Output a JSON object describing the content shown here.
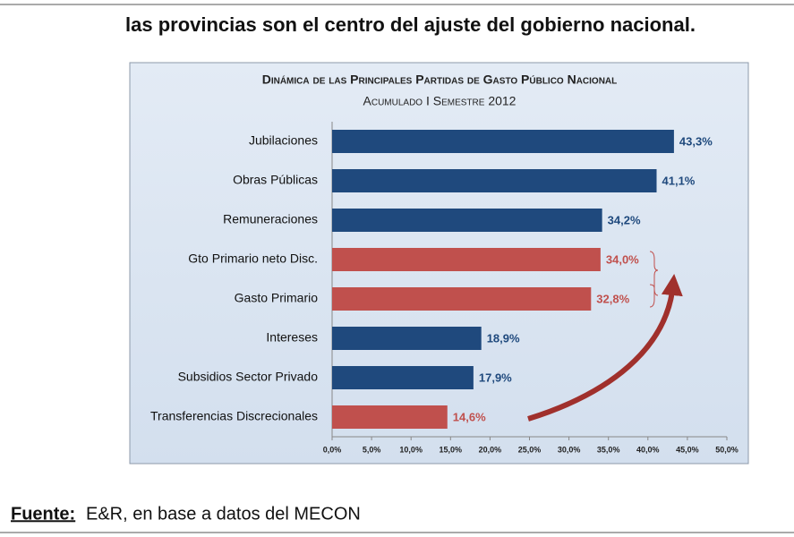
{
  "header": {
    "text": "las provincias son el centro del ajuste del gobierno nacional."
  },
  "chart_data": {
    "type": "hbar",
    "title": "Dinámica de las Principales Partidas de Gasto Público Nacional",
    "subtitle": "Acumulado I Semestre 2012",
    "categories": [
      "Jubilaciones",
      "Obras Públicas",
      "Remuneraciones",
      "Gto Primario neto Disc.",
      "Gasto Primario",
      "Intereses",
      "Subsidios Sector Privado",
      "Transferencias Discrecionales"
    ],
    "values": [
      43.3,
      41.1,
      34.2,
      34.0,
      32.8,
      18.9,
      17.9,
      14.6
    ],
    "value_labels": [
      "43,3%",
      "41,1%",
      "34,2%",
      "34,0%",
      "32,8%",
      "18,9%",
      "17,9%",
      "14,6%"
    ],
    "colors": [
      "#1f497d",
      "#1f497d",
      "#1f497d",
      "#c0504d",
      "#c0504d",
      "#1f497d",
      "#1f497d",
      "#c0504d"
    ],
    "xlim": [
      0,
      50
    ],
    "xticks": [
      {
        "value": 0,
        "label": "0,0%"
      },
      {
        "value": 5,
        "label": "5,0%"
      },
      {
        "value": 10,
        "label": "10,0%"
      },
      {
        "value": 15,
        "label": "15,0%"
      },
      {
        "value": 20,
        "label": "20,0%"
      },
      {
        "value": 25,
        "label": "25,0%"
      },
      {
        "value": 30,
        "label": "30,0%"
      },
      {
        "value": 35,
        "label": "35,0%"
      },
      {
        "value": 40,
        "label": "40,0%"
      },
      {
        "value": 45,
        "label": "45,0%"
      },
      {
        "value": 50,
        "label": "50,0%"
      }
    ]
  },
  "footer": {
    "label": "Fuente:",
    "text": "E&R, en base a datos del MECON"
  }
}
